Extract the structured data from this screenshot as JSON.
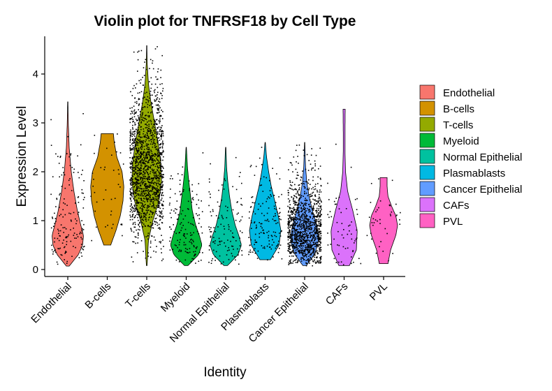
{
  "chart_data": {
    "type": "violin",
    "title": "Violin plot for TNFRSF18 by Cell Type",
    "xlabel": "Identity",
    "ylabel": "Expression Level",
    "ylim": [
      -0.18,
      4.75
    ],
    "yticks": [
      0,
      1,
      2,
      3,
      4
    ],
    "grid": false,
    "legend_position": "right",
    "categories": [
      "Endothelial",
      "B-cells",
      "T-cells",
      "Myeloid",
      "Normal Epithelial",
      "Plasmablasts",
      "Cancer Epithelial",
      "CAFs",
      "PVL"
    ],
    "colors": [
      "#F8766D",
      "#D39200",
      "#93AA00",
      "#00BA38",
      "#00C19F",
      "#00B9E3",
      "#619CFF",
      "#DB72FB",
      "#FF61C3"
    ],
    "series": [
      {
        "name": "Endothelial",
        "min": 0.07,
        "max": 3.43,
        "density_y": [
          0.07,
          0.3,
          0.5,
          0.7,
          0.9,
          1.2,
          1.6,
          2.0,
          2.5,
          3.0,
          3.43
        ],
        "density_w": [
          0.08,
          0.6,
          0.85,
          0.9,
          0.75,
          0.55,
          0.35,
          0.2,
          0.08,
          0.03,
          0.01
        ],
        "points": 160,
        "median": 0.75
      },
      {
        "name": "B-cells",
        "min": 0.5,
        "max": 2.78,
        "density_y": [
          0.5,
          0.8,
          1.1,
          1.4,
          1.7,
          2.0,
          2.3,
          2.6,
          2.78
        ],
        "density_w": [
          0.2,
          0.5,
          0.75,
          0.9,
          0.95,
          0.85,
          0.55,
          0.4,
          0.35
        ],
        "points": 40,
        "median": 1.6
      },
      {
        "name": "T-cells",
        "min": 0.08,
        "max": 4.58,
        "density_y": [
          0.08,
          0.6,
          1.0,
          1.4,
          1.8,
          2.2,
          2.6,
          3.0,
          3.4,
          3.8,
          4.2,
          4.58
        ],
        "density_w": [
          0.02,
          0.1,
          0.35,
          0.7,
          0.85,
          0.8,
          0.65,
          0.45,
          0.25,
          0.1,
          0.03,
          0.01
        ],
        "points": 1500,
        "median": 1.65
      },
      {
        "name": "Myeloid",
        "min": 0.08,
        "max": 2.5,
        "density_y": [
          0.08,
          0.3,
          0.5,
          0.7,
          0.9,
          1.2,
          1.5,
          1.8,
          2.1,
          2.5
        ],
        "density_w": [
          0.1,
          0.7,
          0.9,
          0.75,
          0.55,
          0.35,
          0.25,
          0.15,
          0.07,
          0.01
        ],
        "points": 150,
        "median": 0.6
      },
      {
        "name": "Normal Epithelial",
        "min": 0.08,
        "max": 2.5,
        "density_y": [
          0.08,
          0.3,
          0.5,
          0.7,
          0.9,
          1.2,
          1.5,
          1.8,
          2.1,
          2.5
        ],
        "density_w": [
          0.1,
          0.7,
          0.9,
          0.75,
          0.55,
          0.35,
          0.22,
          0.12,
          0.05,
          0.01
        ],
        "points": 120,
        "median": 0.6
      },
      {
        "name": "Plasmablasts",
        "min": 0.2,
        "max": 2.6,
        "density_y": [
          0.2,
          0.5,
          0.8,
          1.1,
          1.4,
          1.7,
          2.0,
          2.3,
          2.6
        ],
        "density_w": [
          0.3,
          0.8,
          0.9,
          0.75,
          0.55,
          0.35,
          0.2,
          0.08,
          0.01
        ],
        "points": 150,
        "median": 0.85
      },
      {
        "name": "Cancer Epithelial",
        "min": 0.08,
        "max": 2.6,
        "density_y": [
          0.08,
          0.3,
          0.5,
          0.7,
          0.9,
          1.2,
          1.5,
          1.8,
          2.1,
          2.6
        ],
        "density_w": [
          0.1,
          0.55,
          0.75,
          0.8,
          0.7,
          0.45,
          0.25,
          0.12,
          0.05,
          0.01
        ],
        "points": 1200,
        "median": 0.7
      },
      {
        "name": "CAFs",
        "min": 0.08,
        "max": 3.28,
        "density_y": [
          0.08,
          0.4,
          0.8,
          1.2,
          1.6,
          2.0,
          2.4,
          2.8,
          3.28
        ],
        "density_w": [
          0.3,
          0.7,
          0.75,
          0.5,
          0.2,
          0.08,
          0.05,
          0.05,
          0.06
        ],
        "points": 60,
        "median": 0.75
      },
      {
        "name": "PVL",
        "min": 0.12,
        "max": 1.88,
        "density_y": [
          0.12,
          0.4,
          0.7,
          0.9,
          1.1,
          1.3,
          1.5,
          1.7,
          1.88
        ],
        "density_w": [
          0.25,
          0.4,
          0.7,
          0.8,
          0.7,
          0.45,
          0.25,
          0.2,
          0.2
        ],
        "points": 40,
        "median": 0.9
      }
    ]
  }
}
